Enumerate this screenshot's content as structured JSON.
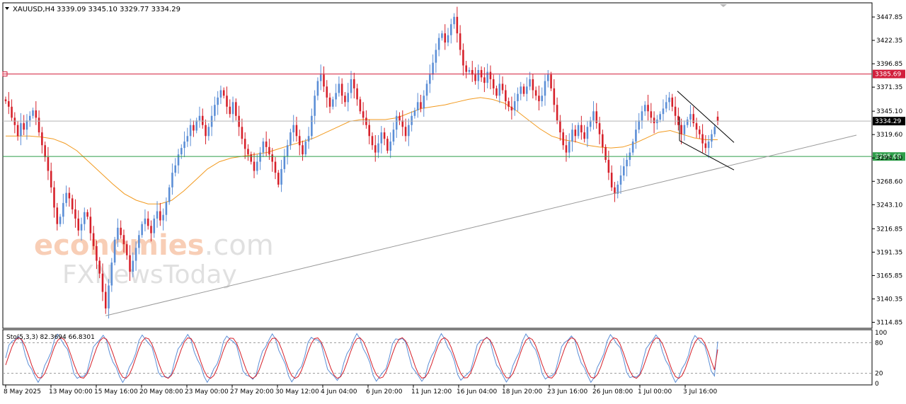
{
  "chart_data": {
    "type": "candlestick",
    "symbol": "XAUUSD,H4",
    "ohlc_header": "3339.09 3345.10 3329.77 3334.29",
    "y_ticks": [
      "3447.85",
      "3422.35",
      "3396.85",
      "3371.35",
      "3345.10",
      "3319.60",
      "3294.10",
      "3268.60",
      "3243.10",
      "3216.85",
      "3191.35",
      "3165.85",
      "3140.35",
      "3114.85"
    ],
    "ylim": [
      3108.3,
      3463.3
    ],
    "x_ticks": [
      "8 May 2025",
      "13 May 00:00",
      "15 May 16:00",
      "20 May 08:00",
      "23 May 00:00",
      "27 May 20:00",
      "30 May 12:00",
      "4 Jun 04:00",
      "6 Jun 20:00",
      "11 Jun 12:00",
      "16 Jun 04:00",
      "18 Jun 20:00",
      "23 Jun 16:00",
      "26 Jun 08:00",
      "1 Jul 00:00",
      "3 Jul 16:00"
    ],
    "levels": [
      {
        "value": 3385.69,
        "label": "3385.69",
        "color": "#d21f3c"
      },
      {
        "value": 3295.69,
        "label": "3295.69",
        "color": "#2e9e4a"
      }
    ],
    "current_price": {
      "value": 3334.29,
      "label": "3334.29"
    },
    "moving_average_color": "#f29a1f",
    "bull_color": "#5b8ed6",
    "bear_color": "#d6202a",
    "trendline_color": "#9a9a9a",
    "channel_color": "#000000",
    "closes": [
      3356,
      3350,
      3338,
      3330,
      3318,
      3332,
      3325,
      3335,
      3340,
      3346,
      3338,
      3322,
      3308,
      3295,
      3280,
      3262,
      3240,
      3222,
      3230,
      3245,
      3256,
      3250,
      3238,
      3228,
      3215,
      3222,
      3235,
      3230,
      3212,
      3198,
      3182,
      3168,
      3148,
      3130,
      3155,
      3180,
      3205,
      3218,
      3210,
      3200,
      3188,
      3170,
      3182,
      3196,
      3210,
      3222,
      3228,
      3220,
      3212,
      3228,
      3236,
      3226,
      3232,
      3246,
      3262,
      3278,
      3286,
      3298,
      3305,
      3312,
      3318,
      3330,
      3324,
      3335,
      3340,
      3330,
      3318,
      3328,
      3340,
      3352,
      3360,
      3368,
      3362,
      3350,
      3342,
      3355,
      3340,
      3328,
      3315,
      3304,
      3298,
      3290,
      3280,
      3290,
      3300,
      3312,
      3306,
      3298,
      3290,
      3278,
      3265,
      3282,
      3296,
      3308,
      3322,
      3330,
      3318,
      3308,
      3298,
      3312,
      3318,
      3340,
      3362,
      3378,
      3385,
      3372,
      3360,
      3350,
      3358,
      3365,
      3375,
      3362,
      3355,
      3365,
      3380,
      3370,
      3358,
      3345,
      3338,
      3330,
      3318,
      3308,
      3300,
      3310,
      3322,
      3315,
      3302,
      3312,
      3325,
      3340,
      3335,
      3328,
      3318,
      3330,
      3340,
      3346,
      3355,
      3348,
      3362,
      3375,
      3385,
      3398,
      3412,
      3425,
      3430,
      3420,
      3428,
      3440,
      3448,
      3430,
      3412,
      3395,
      3388,
      3390,
      3385,
      3378,
      3390,
      3382,
      3376,
      3388,
      3380,
      3370,
      3362,
      3375,
      3368,
      3356,
      3350,
      3346,
      3356,
      3364,
      3372,
      3364,
      3372,
      3380,
      3368,
      3362,
      3356,
      3362,
      3378,
      3385,
      3370,
      3352,
      3335,
      3322,
      3308,
      3300,
      3312,
      3325,
      3318,
      3330,
      3322,
      3315,
      3328,
      3335,
      3345,
      3332,
      3320,
      3306,
      3292,
      3278,
      3262,
      3255,
      3265,
      3275,
      3285,
      3292,
      3300,
      3312,
      3325,
      3335,
      3345,
      3352,
      3345,
      3338,
      3332,
      3336,
      3342,
      3348,
      3355,
      3360,
      3350,
      3340,
      3330,
      3320,
      3330,
      3336,
      3342,
      3332,
      3325,
      3320,
      3310,
      3305,
      3312,
      3320,
      3328,
      3334.29
    ],
    "ma_values": [
      3318,
      3318,
      3318,
      3317,
      3315,
      3310,
      3302,
      3290,
      3278,
      3266,
      3255,
      3248,
      3244,
      3244,
      3248,
      3258,
      3270,
      3282,
      3290,
      3294,
      3296,
      3298,
      3300,
      3304,
      3308,
      3312,
      3316,
      3322,
      3328,
      3334,
      3336,
      3336,
      3336,
      3338,
      3343,
      3348,
      3350,
      3352,
      3355,
      3358,
      3360,
      3358,
      3354,
      3346,
      3336,
      3326,
      3318,
      3314,
      3312,
      3308,
      3306,
      3305,
      3306,
      3310,
      3316,
      3322,
      3324,
      3320,
      3316,
      3314,
      3314
    ],
    "stochastic": {
      "label": "Sto(5,3,3) 82.3694 66.8301",
      "k_value": 82.3694,
      "d_value": 66.8301,
      "k_color": "#5b8ed6",
      "d_color": "#d6202a",
      "levels": [
        80,
        20
      ],
      "ticks": [
        "100",
        "80",
        "20",
        "0"
      ],
      "ylim": [
        0,
        100
      ]
    }
  },
  "watermark": {
    "line1_a": "econo",
    "line1_b": "mies",
    "line1_c": ".com",
    "line2_a": "FX",
    "line2_b": "NewsToday"
  }
}
